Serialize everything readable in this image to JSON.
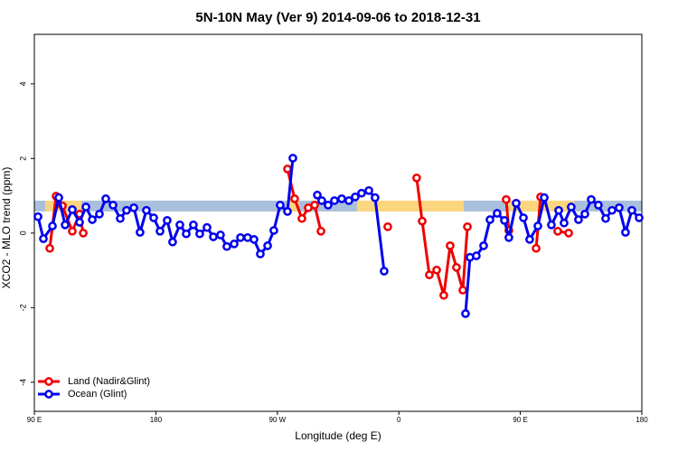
{
  "chart_data": {
    "type": "line",
    "title": "5N-10N May (Ver 9)   2014-09-06 to 2018-12-31",
    "x_label": "Longitude (deg E)",
    "y_label": "XCO2 - MLO trend (ppm)",
    "xlim": [
      90,
      540
    ],
    "ylim": [
      -4.78,
      5.33
    ],
    "xticks": [
      {
        "value": 90,
        "label": "90 E"
      },
      180,
      {
        "value": 270,
        "label": "90 W"
      },
      {
        "value": 360,
        "label": "0"
      },
      {
        "value": 450,
        "label": "90 E"
      },
      {
        "value": 540,
        "label": "180"
      }
    ],
    "yticks": [
      -4,
      -2,
      0,
      2,
      4
    ],
    "mask": {
      "ylim": [
        0.58,
        0.87
      ],
      "ocean_color": "#a9c0dc",
      "land_color": "#fcd67f",
      "land": [
        [
          98,
          125
        ],
        [
          277,
          286
        ],
        [
          329,
          408
        ],
        [
          440,
          490
        ]
      ]
    },
    "legend": "bottom-left",
    "series": [
      {
        "name": "Land (Nadir&Glint)",
        "color": "#ee0000",
        "x": [
          101.4,
          106.1,
          110.8,
          118.1,
          123.5,
          126.2,
          null,
          277.5,
          282.8,
          288.2,
          292.9,
          297.6,
          302.3,
          null,
          351.8,
          null,
          373.2,
          377.3,
          382.6,
          388.0,
          393.3,
          398.0,
          402.7,
          407.4,
          410.8,
          null,
          439.5,
          441.5,
          null,
          461.7,
          465.0,
          null,
          477.7,
          485.8
        ],
        "values": [
          -0.41,
          0.99,
          0.73,
          0.05,
          0.51,
          0.0,
          null,
          1.72,
          0.92,
          0.39,
          0.68,
          0.75,
          0.05,
          null,
          0.17,
          null,
          1.48,
          0.32,
          -1.12,
          -0.99,
          -1.67,
          -0.34,
          -0.92,
          -1.53,
          0.17,
          null,
          0.9,
          0.07,
          null,
          -0.41,
          0.97,
          null,
          0.05,
          0.0
        ]
      },
      {
        "name": "Ocean (Glint)",
        "color": "#0000ee",
        "x": [
          92.7,
          96.7,
          103.4,
          108.1,
          112.8,
          118.1,
          123.5,
          128.2,
          132.9,
          138.2,
          142.9,
          148.3,
          153.6,
          158.3,
          163.7,
          168.3,
          173.0,
          178.4,
          183.1,
          188.4,
          192.4,
          197.8,
          202.5,
          207.8,
          212.5,
          217.9,
          222.6,
          227.9,
          232.6,
          238.0,
          242.7,
          248.0,
          252.7,
          257.4,
          262.8,
          267.4,
          272.1,
          277.5,
          281.5,
          null,
          299.6,
          302.9,
          307.6,
          312.3,
          317.7,
          323.0,
          327.7,
          332.4,
          337.8,
          342.4,
          349.1,
          null,
          409.4,
          412.7,
          417.4,
          422.8,
          427.5,
          432.8,
          438.2,
          441.5,
          446.9,
          452.3,
          456.9,
          463.0,
          467.7,
          473.0,
          478.4,
          482.4,
          487.7,
          493.1,
          497.8,
          502.5,
          507.8,
          513.2,
          517.9,
          523.2,
          527.9,
          532.6,
          538.0
        ],
        "values": [
          0.44,
          -0.15,
          0.19,
          0.95,
          0.22,
          0.63,
          0.29,
          0.7,
          0.36,
          0.51,
          0.92,
          0.75,
          0.39,
          0.61,
          0.68,
          0.02,
          0.61,
          0.41,
          0.05,
          0.34,
          -0.24,
          0.22,
          -0.02,
          0.22,
          -0.02,
          0.15,
          -0.1,
          -0.05,
          -0.36,
          -0.29,
          -0.12,
          -0.12,
          -0.17,
          -0.56,
          -0.34,
          0.07,
          0.75,
          0.58,
          2.01,
          null,
          1.02,
          0.87,
          0.75,
          0.87,
          0.92,
          0.87,
          0.97,
          1.07,
          1.14,
          0.95,
          -1.02,
          null,
          -2.16,
          -0.65,
          -0.61,
          -0.34,
          0.36,
          0.53,
          0.34,
          -0.12,
          0.8,
          0.41,
          -0.17,
          0.19,
          0.95,
          0.22,
          0.61,
          0.27,
          0.7,
          0.36,
          0.51,
          0.9,
          0.75,
          0.39,
          0.61,
          0.68,
          0.02,
          0.61,
          0.41
        ]
      }
    ]
  }
}
